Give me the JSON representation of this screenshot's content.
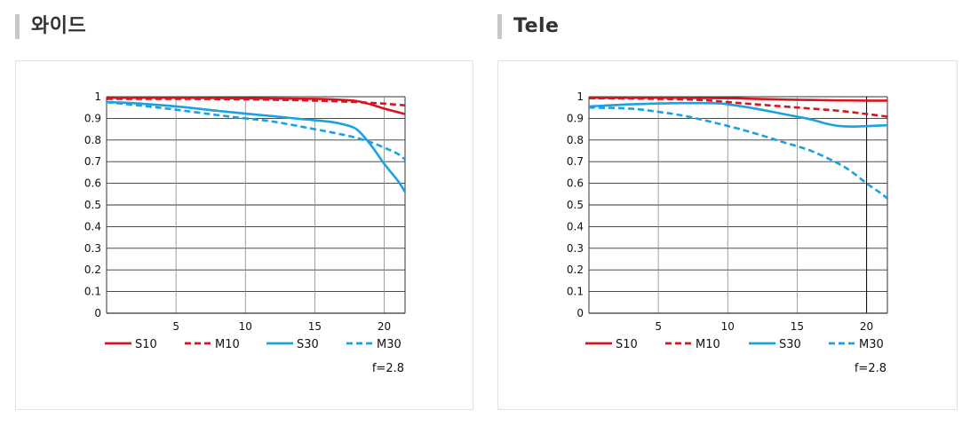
{
  "chart_data": [
    {
      "type": "line",
      "title": "와이드",
      "xlabel": "",
      "ylabel": "",
      "xlim": [
        0,
        21.5
      ],
      "ylim": [
        0,
        1
      ],
      "xticks": [
        5,
        10,
        15,
        20
      ],
      "yticks": [
        0,
        0.1,
        0.2,
        0.3,
        0.4,
        0.5,
        0.6,
        0.7,
        0.8,
        0.9,
        1
      ],
      "yticklabels": [
        "0",
        "0.1",
        "0.2",
        "0.3",
        "0.4",
        "0.5",
        "0.6",
        "0.7",
        "0.8",
        "0.9",
        "1"
      ],
      "grid": true,
      "legend_position": "bottom",
      "note": "f=2.8",
      "series": [
        {
          "name": "S10",
          "color": "#d7141f",
          "dash": "solid",
          "x": [
            0,
            5,
            10,
            15,
            17,
            18,
            19,
            20,
            21.5
          ],
          "y": [
            0.995,
            0.995,
            0.993,
            0.99,
            0.985,
            0.98,
            0.965,
            0.945,
            0.92
          ]
        },
        {
          "name": "M10",
          "color": "#d7141f",
          "dash": "dashed",
          "x": [
            0,
            5,
            10,
            15,
            18,
            20,
            21.5
          ],
          "y": [
            0.99,
            0.99,
            0.988,
            0.982,
            0.975,
            0.968,
            0.96
          ]
        },
        {
          "name": "S30",
          "color": "#1ba1e2",
          "dash": "solid",
          "x": [
            0,
            2,
            5,
            8,
            10,
            12,
            14,
            16,
            17,
            18,
            19,
            20,
            21,
            21.5
          ],
          "y": [
            0.975,
            0.97,
            0.955,
            0.935,
            0.922,
            0.91,
            0.897,
            0.885,
            0.873,
            0.85,
            0.78,
            0.69,
            0.61,
            0.56
          ]
        },
        {
          "name": "M30",
          "color": "#1ba1e2",
          "dash": "dashed",
          "x": [
            0,
            3,
            5,
            8,
            10,
            12,
            15,
            17,
            18,
            19,
            20,
            21,
            21.5
          ],
          "y": [
            0.975,
            0.955,
            0.94,
            0.915,
            0.9,
            0.885,
            0.85,
            0.825,
            0.81,
            0.79,
            0.765,
            0.735,
            0.71
          ]
        }
      ]
    },
    {
      "type": "line",
      "title": "Tele",
      "xlabel": "",
      "ylabel": "",
      "xlim": [
        0,
        21.5
      ],
      "ylim": [
        0,
        1
      ],
      "xticks": [
        5,
        10,
        15,
        20
      ],
      "yticks": [
        0,
        0.1,
        0.2,
        0.3,
        0.4,
        0.5,
        0.6,
        0.7,
        0.8,
        0.9,
        1
      ],
      "yticklabels": [
        "0",
        "0.1",
        "0.2",
        "0.3",
        "0.4",
        "0.5",
        "0.6",
        "0.7",
        "0.8",
        "0.9",
        "1"
      ],
      "grid": true,
      "legend_position": "bottom",
      "note": "f=2.8",
      "series": [
        {
          "name": "S10",
          "color": "#d7141f",
          "dash": "solid",
          "x": [
            0,
            5,
            10,
            12,
            14,
            16,
            18,
            20,
            21.5
          ],
          "y": [
            0.995,
            0.995,
            0.993,
            0.99,
            0.987,
            0.985,
            0.983,
            0.982,
            0.982
          ]
        },
        {
          "name": "M10",
          "color": "#d7141f",
          "dash": "dashed",
          "x": [
            0,
            5,
            8,
            10,
            12,
            15,
            18,
            20,
            21.5
          ],
          "y": [
            0.993,
            0.99,
            0.985,
            0.975,
            0.965,
            0.95,
            0.935,
            0.92,
            0.908
          ]
        },
        {
          "name": "S30",
          "color": "#1ba1e2",
          "dash": "solid",
          "x": [
            0,
            3,
            6,
            9,
            10,
            12,
            14,
            16,
            17,
            18,
            19,
            20,
            21,
            21.5
          ],
          "y": [
            0.955,
            0.965,
            0.97,
            0.97,
            0.965,
            0.945,
            0.92,
            0.895,
            0.877,
            0.865,
            0.862,
            0.864,
            0.867,
            0.868
          ]
        },
        {
          "name": "M30",
          "color": "#1ba1e2",
          "dash": "dashed",
          "x": [
            0,
            3,
            5,
            7,
            10,
            12,
            14,
            16,
            18,
            19,
            20,
            21,
            21.5
          ],
          "y": [
            0.95,
            0.945,
            0.93,
            0.91,
            0.865,
            0.83,
            0.79,
            0.75,
            0.69,
            0.65,
            0.6,
            0.555,
            0.53
          ]
        }
      ]
    }
  ]
}
